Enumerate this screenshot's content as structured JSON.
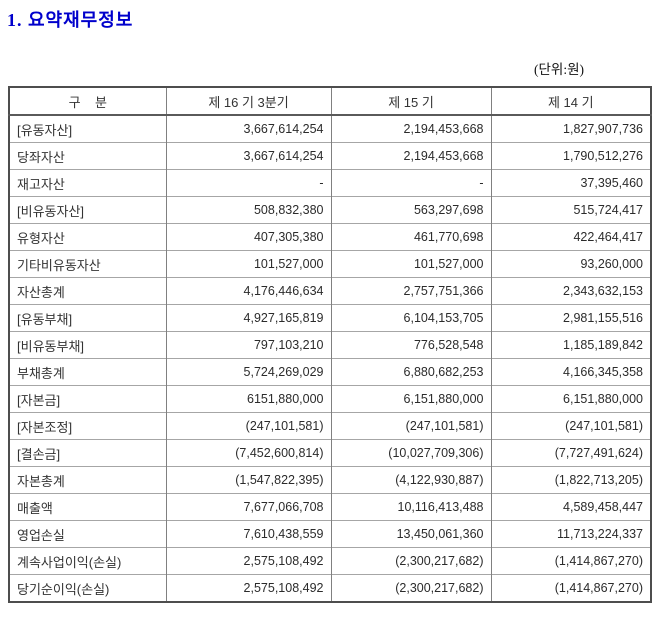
{
  "page": {
    "title": "1. 요약재무정보",
    "unit_label": "(단위:원)",
    "title_color": "#0000CC"
  },
  "table": {
    "columns": [
      "구    분",
      "제 16 기 3분기",
      "제 15 기",
      "제 14 기"
    ],
    "rows": [
      {
        "label": "[유동자산]",
        "values": [
          "3,667,614,254",
          "2,194,453,668",
          "1,827,907,736"
        ]
      },
      {
        "label": "당좌자산",
        "values": [
          "3,667,614,254",
          "2,194,453,668",
          "1,790,512,276"
        ]
      },
      {
        "label": "재고자산",
        "values": [
          "-",
          "-",
          "37,395,460"
        ]
      },
      {
        "label": "[비유동자산]",
        "values": [
          "508,832,380",
          "563,297,698",
          "515,724,417"
        ]
      },
      {
        "label": "유형자산",
        "values": [
          "407,305,380",
          "461,770,698",
          "422,464,417"
        ]
      },
      {
        "label": "기타비유동자산",
        "values": [
          "101,527,000",
          "101,527,000",
          "93,260,000"
        ]
      },
      {
        "label": "자산총계",
        "values": [
          "4,176,446,634",
          "2,757,751,366",
          "2,343,632,153"
        ]
      },
      {
        "label": "[유동부채]",
        "values": [
          "4,927,165,819",
          "6,104,153,705",
          "2,981,155,516"
        ]
      },
      {
        "label": "[비유동부채]",
        "values": [
          "797,103,210",
          "776,528,548",
          "1,185,189,842"
        ]
      },
      {
        "label": "부채총계",
        "values": [
          "5,724,269,029",
          "6,880,682,253",
          "4,166,345,358"
        ]
      },
      {
        "label": "[자본금]",
        "values": [
          "6151,880,000",
          "6,151,880,000",
          "6,151,880,000"
        ]
      },
      {
        "label": "[자본조정]",
        "values": [
          "(247,101,581)",
          "(247,101,581)",
          "(247,101,581)"
        ]
      },
      {
        "label": "[결손금]",
        "values": [
          "(7,452,600,814)",
          "(10,027,709,306)",
          "(7,727,491,624)"
        ]
      },
      {
        "label": "자본총계",
        "values": [
          "(1,547,822,395)",
          "(4,122,930,887)",
          "(1,822,713,205)"
        ]
      },
      {
        "label": "매출액",
        "values": [
          "7,677,066,708",
          "10,116,413,488",
          "4,589,458,447"
        ]
      },
      {
        "label": "영업손실",
        "values": [
          "7,610,438,559",
          "13,450,061,360",
          "11,713,224,337"
        ]
      },
      {
        "label": "계속사업이익(손실)",
        "values": [
          "2,575,108,492",
          "(2,300,217,682)",
          "(1,414,867,270)"
        ]
      },
      {
        "label": "당기순이익(손실)",
        "values": [
          "2,575,108,492",
          "(2,300,217,682)",
          "(1,414,867,270)"
        ]
      }
    ]
  }
}
